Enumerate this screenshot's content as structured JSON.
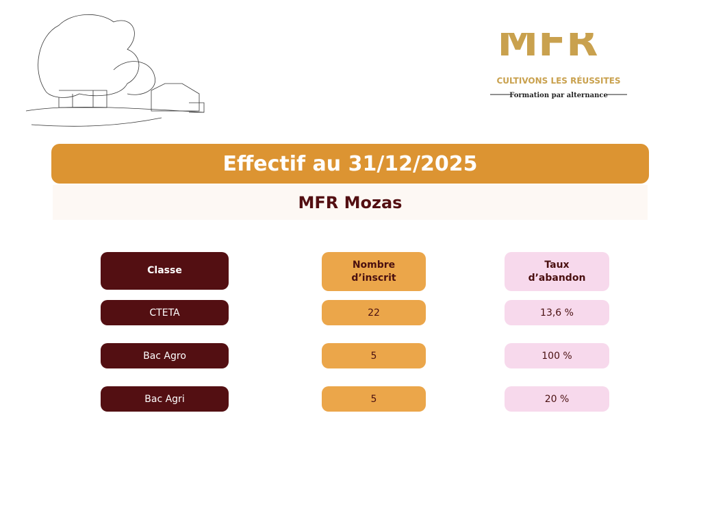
{
  "logo": {
    "mark": "MFR",
    "tagline": "CULTIVONS LES RÉUSSITES",
    "subline": "Formation par alternance"
  },
  "header": {
    "title": "Effectif au 31/12/2025",
    "subtitle": "MFR Mozas"
  },
  "table": {
    "columns": [
      "Classe",
      "Nombre d’inscrit",
      "Taux d’abandon"
    ],
    "rows": [
      [
        "CTETA",
        "22",
        "13,6 %"
      ],
      [
        "Bac Agro",
        "5",
        "100 %"
      ],
      [
        "Bac Agri",
        "5",
        "20 %"
      ]
    ]
  }
}
